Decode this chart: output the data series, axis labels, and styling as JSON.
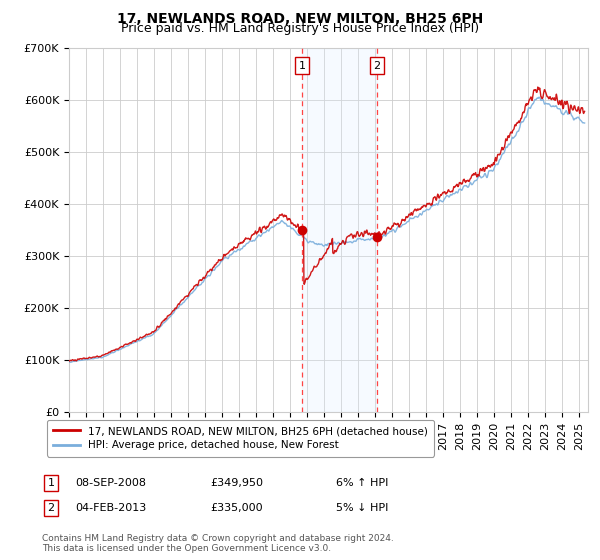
{
  "title": "17, NEWLANDS ROAD, NEW MILTON, BH25 6PH",
  "subtitle": "Price paid vs. HM Land Registry's House Price Index (HPI)",
  "ylim": [
    0,
    700000
  ],
  "yticks": [
    0,
    100000,
    200000,
    300000,
    400000,
    500000,
    600000,
    700000
  ],
  "ytick_labels": [
    "£0",
    "£100K",
    "£200K",
    "£300K",
    "£400K",
    "£500K",
    "£600K",
    "£700K"
  ],
  "xlim_start": 1995.0,
  "xlim_end": 2025.5,
  "sale1_date": 2008.69,
  "sale1_price": 349950,
  "sale1_label": "08-SEP-2008",
  "sale1_amount": "£349,950",
  "sale1_hpi": "6% ↑ HPI",
  "sale2_date": 2013.09,
  "sale2_price": 335000,
  "sale2_label": "04-FEB-2013",
  "sale2_amount": "£335,000",
  "sale2_hpi": "5% ↓ HPI",
  "line1_color": "#cc0000",
  "line2_color": "#7aaedc",
  "shade_color": "#ddeeff",
  "vline_color": "#ff4444",
  "marker_box_color": "#cc0000",
  "legend1": "17, NEWLANDS ROAD, NEW MILTON, BH25 6PH (detached house)",
  "legend2": "HPI: Average price, detached house, New Forest",
  "footnote": "Contains HM Land Registry data © Crown copyright and database right 2024.\nThis data is licensed under the Open Government Licence v3.0.",
  "background_color": "#ffffff",
  "grid_color": "#cccccc",
  "title_fontsize": 10,
  "subtitle_fontsize": 9,
  "tick_fontsize": 8
}
